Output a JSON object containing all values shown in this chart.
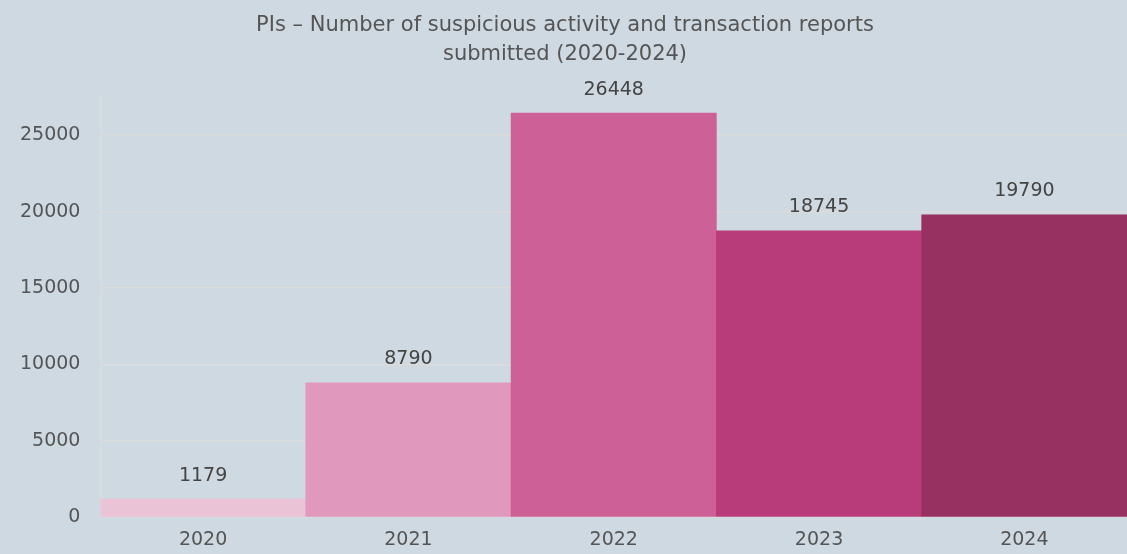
{
  "chart_data": {
    "type": "bar",
    "title": "PIs – Number of suspicious activity and transaction reports submitted (2020-2024)",
    "categories": [
      "2020",
      "2021",
      "2022",
      "2023",
      "2024"
    ],
    "values": [
      1179,
      8790,
      26448,
      18745,
      19790
    ],
    "colors": [
      "#ebc3d6",
      "#e098bc",
      "#cd6197",
      "#b83c7a",
      "#973162"
    ],
    "ylim": [
      0,
      27500
    ],
    "yticks": [
      0,
      5000,
      10000,
      15000,
      20000,
      25000
    ],
    "grid": "y",
    "data_labels": true,
    "legend": false
  }
}
